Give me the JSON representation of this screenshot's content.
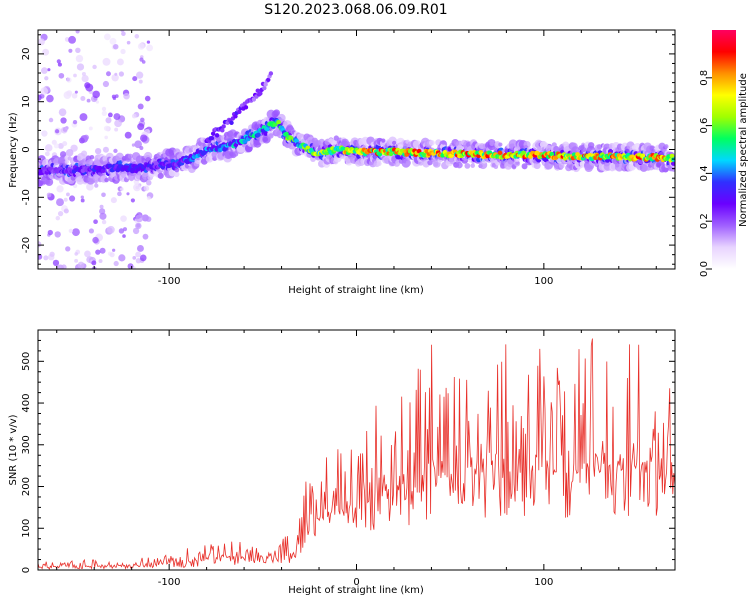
{
  "title": "S120.2023.068.06.09.R01",
  "chart_data": [
    {
      "type": "heatmap",
      "xlabel": "Height of straight line (km)",
      "ylabel": "Frequency (Hz)",
      "xlim": [
        -170,
        170
      ],
      "ylim": [
        -25,
        25
      ],
      "x_ticks": [
        -100,
        100
      ],
      "y_ticks": [
        -20,
        -10,
        0,
        10,
        20
      ],
      "grid": false,
      "colorbar": {
        "label": "Normalized spectral amplitude",
        "range": [
          0,
          1
        ],
        "ticks": [
          "0.0",
          "0.2",
          "0.4",
          "0.6",
          "0.8"
        ],
        "colormap": [
          "#ffffff",
          "#e8d4ff",
          "#a060ff",
          "#6a00ff",
          "#3030ff",
          "#00d8ff",
          "#00ff60",
          "#a0ff00",
          "#ffff00",
          "#ff9000",
          "#ff0000",
          "#ff0060"
        ]
      },
      "ridge": {
        "x": [
          -170,
          -140,
          -120,
          -110,
          -90,
          -80,
          -70,
          -60,
          -50,
          -42,
          -38,
          -30,
          -20,
          -10,
          0,
          20,
          40,
          60,
          80,
          100,
          120,
          140,
          170
        ],
        "frequency": [
          -4.5,
          -4,
          -3.8,
          -3.5,
          -2.5,
          0,
          0.5,
          2,
          4,
          6,
          3,
          1,
          -1,
          0,
          -0.5,
          -0.5,
          -0.8,
          -1,
          -1.2,
          -1.2,
          -1.5,
          -1.5,
          -1.8
        ],
        "amplitude": [
          0.3,
          0.35,
          0.35,
          0.35,
          0.4,
          0.45,
          0.5,
          0.5,
          0.55,
          0.6,
          0.6,
          0.65,
          0.7,
          0.8,
          0.85,
          0.9,
          0.85,
          0.9,
          0.85,
          0.9,
          0.85,
          0.9,
          0.85
        ]
      },
      "secondary_branch": {
        "x": [
          -80,
          -70,
          -60,
          -50,
          -45
        ],
        "frequency": [
          2,
          5,
          9,
          13,
          17
        ],
        "amplitude": [
          0.3,
          0.3,
          0.25,
          0.25,
          0.2
        ]
      },
      "noise_region_x": [
        -170,
        -110
      ]
    },
    {
      "type": "line",
      "xlabel": "Height of straight line (km)",
      "ylabel": "SNR (10 * v/v)",
      "xlim": [
        -170,
        170
      ],
      "ylim": [
        0,
        575
      ],
      "x_ticks": [
        -100,
        0,
        100
      ],
      "y_ticks": [
        0,
        100,
        200,
        300,
        400,
        500
      ],
      "grid": false,
      "series": [
        {
          "color": "#e8302a",
          "envelope": {
            "x": [
              -170,
              -140,
              -120,
              -100,
              -80,
              -70,
              -60,
              -50,
              -42,
              -32,
              -26,
              -20,
              -10,
              0,
              10,
              20,
              30,
              40,
              50,
              60,
              70,
              80,
              90,
              100,
              110,
              120,
              130,
              140,
              150,
              160,
              170
            ],
            "low": [
              2,
              3,
              4,
              5,
              8,
              10,
              12,
              14,
              15,
              18,
              80,
              70,
              90,
              100,
              90,
              110,
              100,
              120,
              110,
              130,
              110,
              130,
              120,
              140,
              120,
              140,
              130,
              130,
              120,
              130,
              160
            ],
            "high": [
              20,
              25,
              30,
              40,
              65,
              90,
              70,
              75,
              70,
              100,
              240,
              260,
              290,
              300,
              420,
              400,
              470,
              560,
              470,
              560,
              480,
              560,
              500,
              560,
              510,
              550,
              575,
              540,
              560,
              500,
              450
            ]
          }
        }
      ]
    }
  ]
}
